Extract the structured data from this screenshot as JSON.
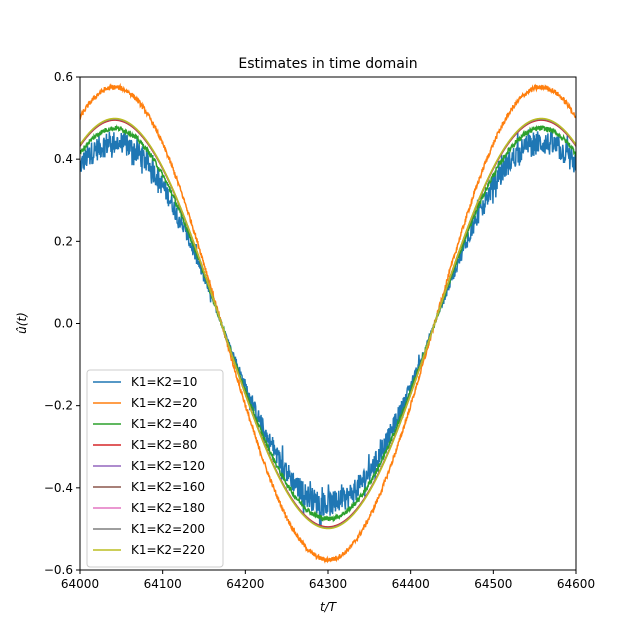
{
  "chart_data": {
    "type": "line",
    "title": "Estimates in time domain",
    "xlabel": "t/T",
    "ylabel": "û(t)",
    "xlim": [
      64000,
      64600
    ],
    "ylim": [
      -0.6,
      0.6
    ],
    "xticks": [
      "64000",
      "64100",
      "64200",
      "64300",
      "64400",
      "64500",
      "64600"
    ],
    "yticks": [
      "−0.6",
      "−0.4",
      "−0.2",
      "0.0",
      "0.2",
      "0.4",
      "0.6"
    ],
    "grid": false,
    "legend_position": "lower-left",
    "period": 516,
    "x_at_max": 64042,
    "series": [
      {
        "name": "K1=K2=10",
        "color": "#1f77b4",
        "amplitude": 0.44,
        "noise": "high"
      },
      {
        "name": "K1=K2=20",
        "color": "#ff7f0e",
        "amplitude": 0.575,
        "noise": "low"
      },
      {
        "name": "K1=K2=40",
        "color": "#2ca02c",
        "amplitude": 0.475,
        "noise": "low"
      },
      {
        "name": "K1=K2=80",
        "color": "#d62728",
        "amplitude": 0.495,
        "noise": "none"
      },
      {
        "name": "K1=K2=120",
        "color": "#9467bd",
        "amplitude": 0.497,
        "noise": "none"
      },
      {
        "name": "K1=K2=160",
        "color": "#8c564b",
        "amplitude": 0.497,
        "noise": "none"
      },
      {
        "name": "K1=K2=180",
        "color": "#e377c2",
        "amplitude": 0.498,
        "noise": "none"
      },
      {
        "name": "K1=K2=200",
        "color": "#7f7f7f",
        "amplitude": 0.498,
        "noise": "none"
      },
      {
        "name": "K1=K2=220",
        "color": "#bcbd22",
        "amplitude": 0.499,
        "noise": "none"
      }
    ]
  }
}
